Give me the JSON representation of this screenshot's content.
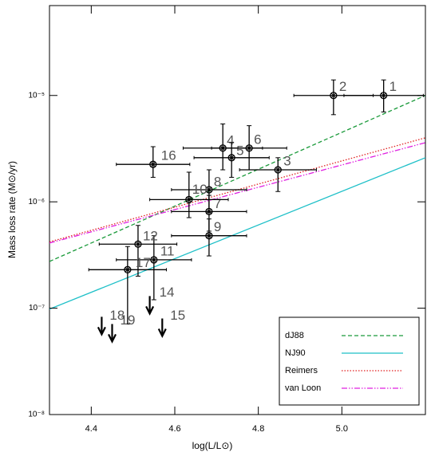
{
  "chart_data": {
    "type": "scatter",
    "x_label": "log(L/L⊙)",
    "y_label": "Mass loss rate (M⊙/yr)",
    "xlim": [
      4.3,
      5.2
    ],
    "xticks": [
      4.4,
      4.6,
      4.8,
      {
        "value": 5.0,
        "label": "5.0"
      }
    ],
    "ylim": [
      1e-08,
      7e-05
    ],
    "log_y": true,
    "yticks": [
      {
        "value": 1e-08,
        "label": "10⁻⁸"
      },
      {
        "value": 1e-07,
        "label": "10⁻⁷"
      },
      {
        "value": 1e-06,
        "label": "10⁻⁶"
      },
      {
        "value": 1e-05,
        "label": "10⁻⁵"
      }
    ],
    "points": [
      {
        "label": "1",
        "x": 5.1,
        "x_err": 0.095,
        "y": 1e-05,
        "y_lo": 7e-06,
        "y_hi": 1.4e-05
      },
      {
        "label": "2",
        "x": 4.98,
        "x_err": 0.095,
        "y": 1e-05,
        "y_lo": 6.6e-06,
        "y_hi": 1.4e-05
      },
      {
        "label": "3",
        "x": 4.847,
        "x_err": 0.092,
        "y": 2e-06,
        "y_lo": 1.25e-06,
        "y_hi": 2.6e-06
      },
      {
        "label": "4",
        "x": 4.715,
        "x_err": 0.095,
        "y": 3.2e-06,
        "y_lo": 2e-06,
        "y_hi": 5.4e-06
      },
      {
        "label": "5",
        "x": 4.736,
        "x_err": 0.09,
        "y": 2.6e-06,
        "y_lo": 1.7e-06,
        "y_hi": 3.6e-06
      },
      {
        "label": "6",
        "x": 4.778,
        "x_err": 0.09,
        "y": 3.2e-06,
        "y_lo": 2e-06,
        "y_hi": 5.2e-06
      },
      {
        "label": "7",
        "x": 4.682,
        "x_err": 0.09,
        "y": 8.1e-07,
        "y_lo": 5.3e-07,
        "y_hi": 1.15e-06
      },
      {
        "label": "8",
        "x": 4.682,
        "x_err": 0.09,
        "y": 1.3e-06,
        "y_lo": 8e-07,
        "y_hi": 2e-06
      },
      {
        "label": "9",
        "x": 4.682,
        "x_err": 0.09,
        "y": 4.8e-07,
        "y_lo": 3.1e-07,
        "y_hi": 6.9e-07
      },
      {
        "label": "10",
        "x": 4.634,
        "x_err": 0.094,
        "y": 1.05e-06,
        "y_lo": 7.1e-07,
        "y_hi": 1.9e-06
      },
      {
        "label": "11",
        "x": 4.55,
        "x_err": 0.09,
        "y": 2.85e-07,
        "y_lo": 1.2e-07,
        "y_hi": 4.8e-07
      },
      {
        "label": "12",
        "x": 4.512,
        "x_err": 0.093,
        "y": 4e-07,
        "y_lo": 2e-07,
        "y_hi": 6e-07
      },
      {
        "label": "16",
        "x": 4.548,
        "x_err": 0.088,
        "y": 2.25e-06,
        "y_lo": 1.7e-06,
        "y_hi": 3.3e-06
      },
      {
        "label": "17",
        "x": 4.487,
        "x_err": 0.093,
        "y": 2.3e-07,
        "y_lo": 7.1e-08,
        "y_hi": 3.8e-07
      }
    ],
    "upper_limits": [
      {
        "label": "14",
        "x": 4.54,
        "y": 1.3e-07
      },
      {
        "label": "15",
        "x": 4.57,
        "y": 8e-08
      },
      {
        "label": "18",
        "x": 4.425,
        "y": 8.3e-08
      },
      {
        "label": "19",
        "x": 4.45,
        "y": 7.1e-08
      }
    ],
    "lines": [
      {
        "name": "dJ88",
        "color": "#1a9a3a",
        "style": "dashed",
        "x": [
          4.3,
          5.2
        ],
        "values": [
          2.75e-07,
          1e-05
        ]
      },
      {
        "name": "NJ90",
        "color": "#1fc0c8",
        "style": "solid",
        "x": [
          4.3,
          5.2
        ],
        "values": [
          9.8e-08,
          2.6e-06
        ]
      },
      {
        "name": "Reimers",
        "color": "#e02020",
        "style": "dotted",
        "x": [
          4.3,
          5.2
        ],
        "values": [
          4.2e-07,
          4e-06
        ]
      },
      {
        "name": "van Loon",
        "color": "#e020e0",
        "style": "dashdotdot",
        "x": [
          4.3,
          5.2
        ],
        "values": [
          4.1e-07,
          3.6e-06
        ]
      }
    ]
  }
}
